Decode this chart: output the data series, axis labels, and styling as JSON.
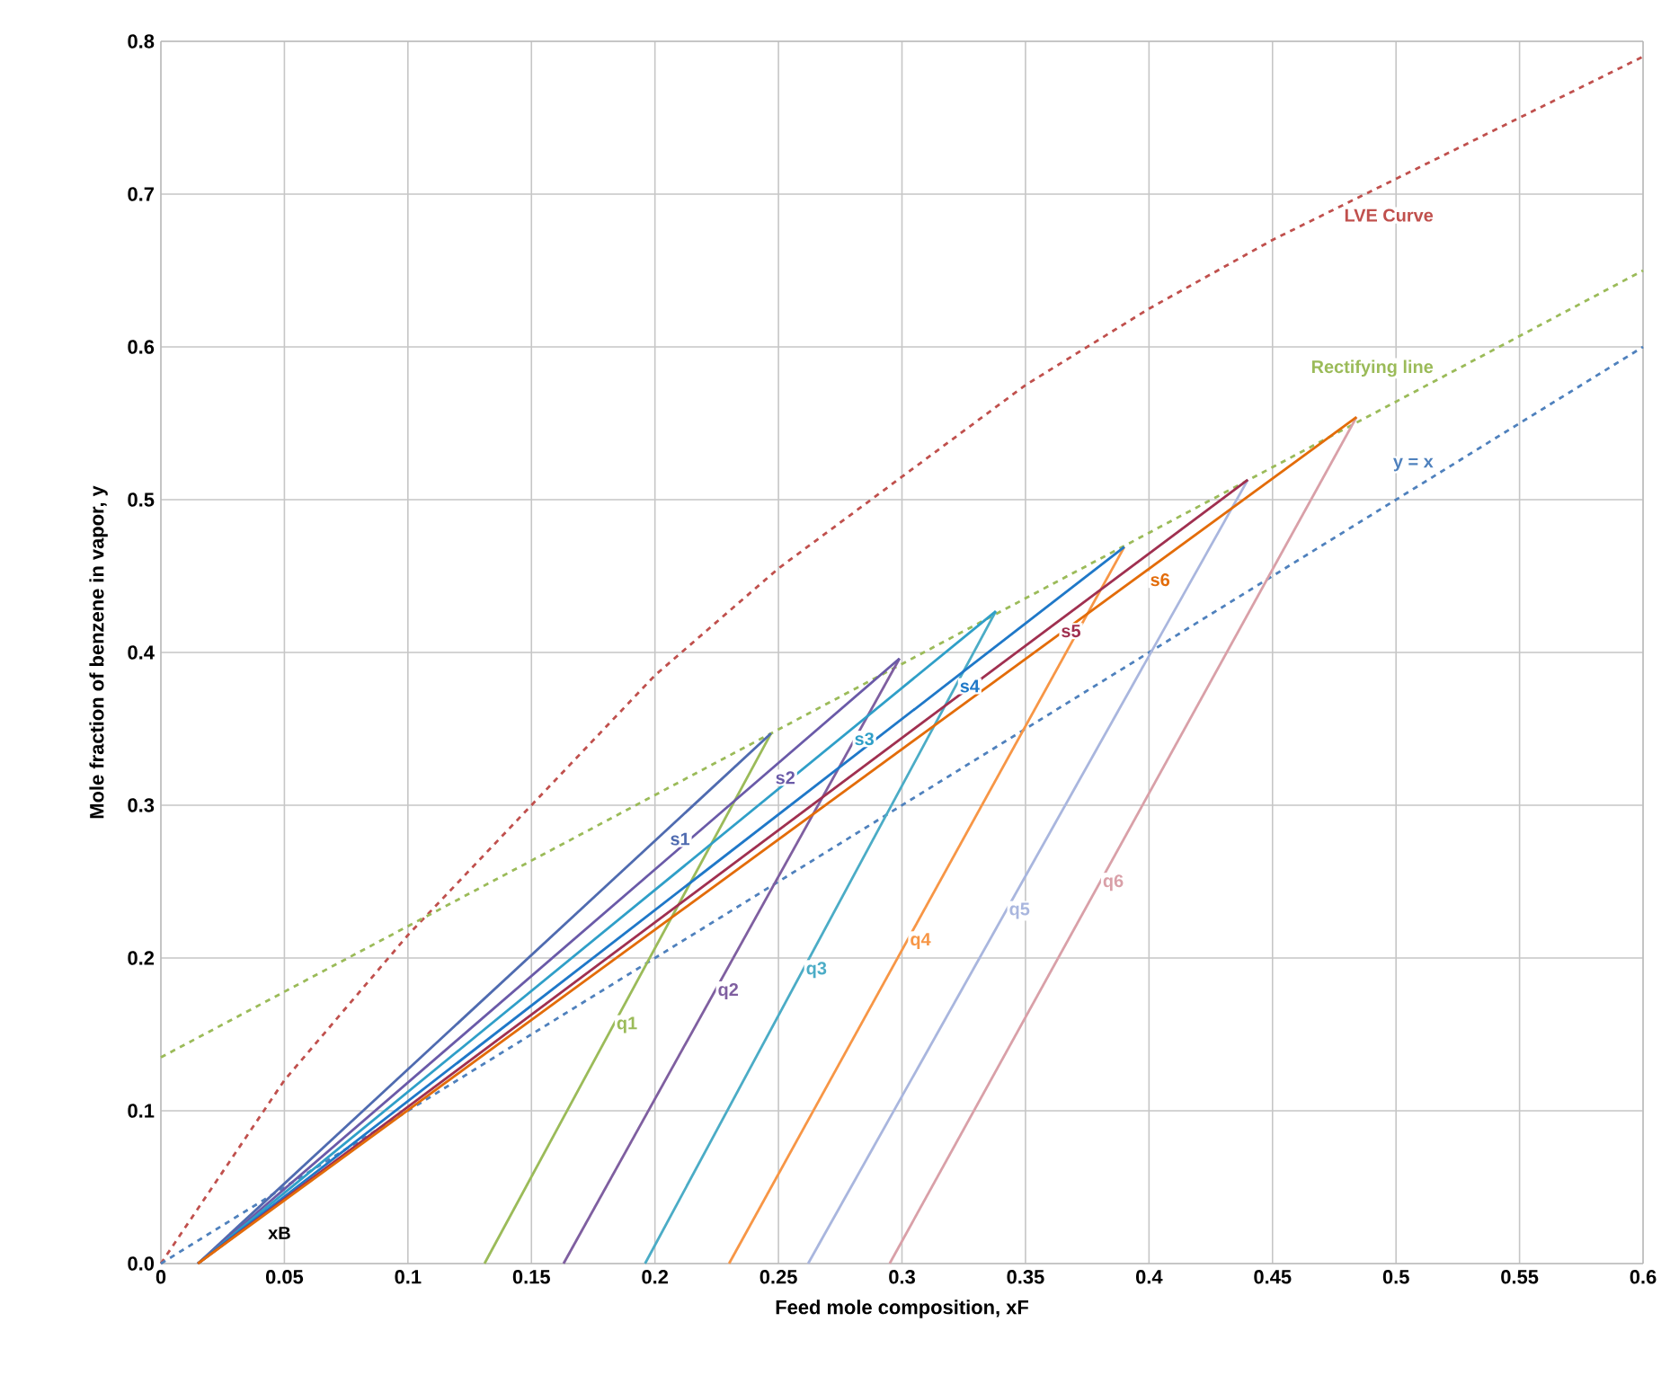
{
  "chart_data": {
    "type": "line",
    "xlabel": "Feed mole composition, xF",
    "ylabel": "Mole fraction of benzene in vapor, y",
    "xlim": [
      0,
      0.6
    ],
    "ylim": [
      0,
      0.8
    ],
    "xticks": [
      0,
      0.05,
      0.1,
      0.15,
      0.2,
      0.25,
      0.3,
      0.35,
      0.4,
      0.45,
      0.5,
      0.55,
      0.6
    ],
    "yticks": [
      {
        "value": 0,
        "label": "0.0"
      },
      0.1,
      0.2,
      0.3,
      0.4,
      0.5,
      0.6,
      0.7,
      0.8
    ],
    "grid": true,
    "marker": "none",
    "series": [
      {
        "name": "LVE Curve",
        "color": "#c0504d",
        "line_style": "dashed",
        "x": [
          0,
          0.05,
          0.1,
          0.15,
          0.2,
          0.25,
          0.3,
          0.35,
          0.4,
          0.45,
          0.5,
          0.55,
          0.6
        ],
        "values": [
          0,
          0.12,
          0.215,
          0.3,
          0.385,
          0.455,
          0.515,
          0.575,
          0.625,
          0.67,
          0.71,
          0.75,
          0.79
        ]
      },
      {
        "name": "Rectifying line",
        "color": "#9bbb59",
        "line_style": "dashed",
        "x": [
          0,
          0.6
        ],
        "values": [
          0.135,
          0.65
        ]
      },
      {
        "name": "y = x",
        "color": "#4f81bd",
        "line_style": "dashed",
        "x": [
          0,
          0.6
        ],
        "values": [
          0,
          0.6
        ]
      },
      {
        "name": "q1",
        "color": "#9bbb59",
        "line_style": "solid",
        "x": [
          0.131,
          0.247
        ],
        "values": [
          0,
          0.347
        ]
      },
      {
        "name": "q2",
        "color": "#7f5fa0",
        "line_style": "solid",
        "x": [
          0.163,
          0.299
        ],
        "values": [
          0,
          0.396
        ]
      },
      {
        "name": "q3",
        "color": "#4bacc6",
        "line_style": "solid",
        "x": [
          0.196,
          0.338
        ],
        "values": [
          0,
          0.427
        ]
      },
      {
        "name": "q4",
        "color": "#f79646",
        "line_style": "solid",
        "x": [
          0.23,
          0.39
        ],
        "values": [
          0,
          0.469
        ]
      },
      {
        "name": "q5",
        "color": "#a9b6de",
        "line_style": "solid",
        "x": [
          0.262,
          0.44
        ],
        "values": [
          0,
          0.513
        ]
      },
      {
        "name": "q6",
        "color": "#d9a0a8",
        "line_style": "solid",
        "x": [
          0.295,
          0.484
        ],
        "values": [
          0,
          0.554
        ]
      },
      {
        "name": "s1",
        "color": "#4f6bb0",
        "line_style": "solid",
        "x": [
          0.015,
          0.247
        ],
        "values": [
          0,
          0.347
        ]
      },
      {
        "name": "s2",
        "color": "#6a5aa8",
        "line_style": "solid",
        "x": [
          0.015,
          0.299
        ],
        "values": [
          0,
          0.396
        ]
      },
      {
        "name": "s3",
        "color": "#2f9fc8",
        "line_style": "solid",
        "x": [
          0.015,
          0.338
        ],
        "values": [
          0,
          0.427
        ]
      },
      {
        "name": "s4",
        "color": "#1f78c8",
        "line_style": "solid",
        "x": [
          0.015,
          0.39
        ],
        "values": [
          0,
          0.469
        ]
      },
      {
        "name": "s5",
        "color": "#a03050",
        "line_style": "solid",
        "x": [
          0.015,
          0.44
        ],
        "values": [
          0,
          0.513
        ]
      },
      {
        "name": "s6",
        "color": "#e36c09",
        "line_style": "solid",
        "x": [
          0.015,
          0.484
        ],
        "values": [
          0,
          0.554
        ]
      }
    ],
    "annotations": [
      "xB"
    ]
  }
}
